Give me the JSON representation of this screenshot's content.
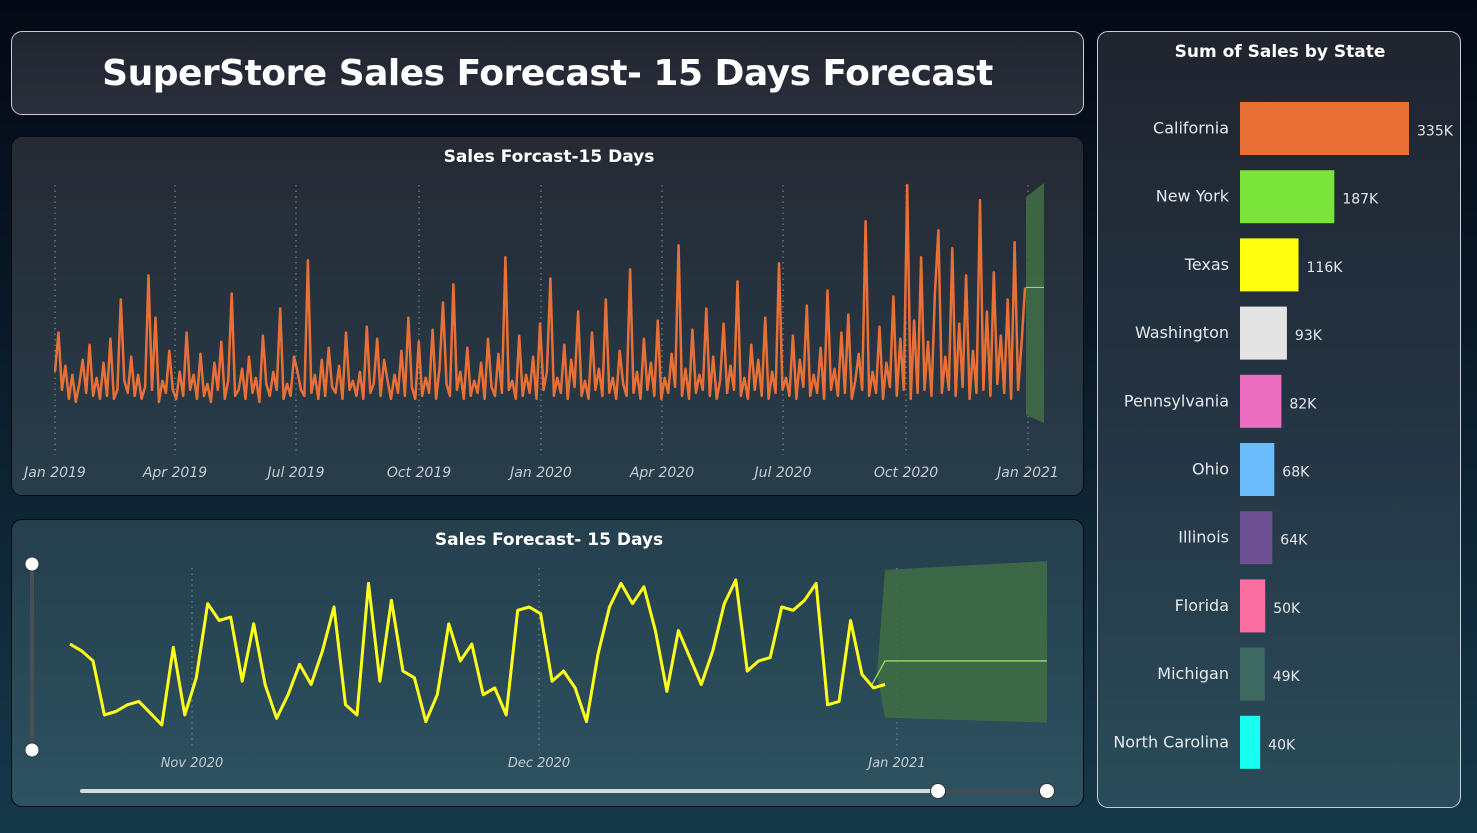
{
  "header": {
    "title": "SuperStore Sales Forecast- 15 Days Forecast"
  },
  "colors": {
    "history_line": "#e87036",
    "detail_line": "#ffff1a",
    "forecast_band": "#3f6b45",
    "forecast_line": "#8fe060"
  },
  "chart_data": [
    {
      "type": "line",
      "title": "Sales Forcast-15 Days",
      "x_ticks": [
        "Jan 2019",
        "Apr 2019",
        "Jul 2019",
        "Oct 2019",
        "Jan 2020",
        "Apr 2020",
        "Jul 2020",
        "Oct 2020",
        "Jan 2021"
      ],
      "x_range": [
        "2019-01-01",
        "2021-01-15"
      ],
      "grid": "vertical dotted",
      "series": [
        {
          "values": [
            1500,
            2800,
            900,
            1700,
            600,
            1400,
            500,
            1100,
            1900,
            800,
            2400,
            700,
            1300,
            600,
            1800,
            700,
            2600,
            600,
            900,
            3900,
            1200,
            800,
            2000,
            700,
            1400,
            600,
            1000,
            4700,
            900,
            3300,
            500,
            1200,
            800,
            2200,
            900,
            600,
            1500,
            700,
            2800,
            900,
            1400,
            600,
            2100,
            700,
            1100,
            500,
            1800,
            900,
            2500,
            600,
            1200,
            4100,
            700,
            900,
            1600,
            600,
            2000,
            800,
            1300,
            500,
            2700,
            1100,
            700,
            1500,
            900,
            3600,
            600,
            1100,
            700,
            2000,
            1500,
            900,
            700,
            5200,
            800,
            1400,
            600,
            1900,
            700,
            2300,
            1000,
            800,
            1700,
            600,
            2800,
            900,
            1200,
            700,
            1500,
            600,
            3000,
            800,
            1100,
            2600,
            700,
            1900,
            1200,
            600,
            1400,
            800,
            2200,
            700,
            3300,
            1000,
            600,
            2500,
            700,
            1300,
            800,
            2900,
            600,
            1600,
            3800,
            1100,
            700,
            4400,
            900,
            1500,
            600,
            2300,
            700,
            1200,
            800,
            1800,
            600,
            2600,
            1000,
            700,
            2100,
            800,
            5300,
            900,
            1200,
            600,
            2700,
            700,
            1400,
            800,
            2000,
            600,
            3100,
            900,
            1500,
            4600,
            700,
            1300,
            800,
            2400,
            600,
            1900,
            1000,
            3500,
            700,
            1200,
            600,
            2800,
            900,
            1600,
            700,
            3900,
            800,
            1300,
            600,
            2200,
            1100,
            700,
            4900,
            800,
            1500,
            600,
            2600,
            900,
            1800,
            700,
            3200,
            600,
            1300,
            800,
            2100,
            1000,
            5700,
            700,
            1600,
            600,
            2900,
            800,
            1400,
            900,
            3600,
            700,
            2000,
            600,
            1200,
            3100,
            800,
            1700,
            900,
            4500,
            700,
            1300,
            600,
            2400,
            900,
            1900,
            700,
            3300,
            600,
            1500,
            800,
            5100,
            900,
            1300,
            700,
            2700,
            600,
            1900,
            1000,
            3700,
            700,
            1400,
            800,
            2300,
            600,
            4200,
            900,
            1600,
            700,
            2800,
            800,
            3400,
            600,
            1200,
            2100,
            900,
            6500,
            700,
            1500,
            800,
            3000,
            600,
            1800,
            1000,
            4000,
            700,
            2600,
            900,
            7700,
            600,
            3200,
            800,
            5300,
            900,
            2500,
            700,
            4100,
            6200,
            800,
            2000,
            900,
            5600,
            700,
            3100,
            1000,
            4700,
            600,
            2200,
            800,
            7200,
            900,
            3500,
            700,
            4800,
            1100,
            2700,
            800,
            3900,
            600,
            5800,
            900,
            2400,
            4300
          ],
          "forecast_band": [
            3200,
            7500
          ],
          "forecast_value": 4300
        }
      ]
    },
    {
      "type": "line",
      "title": "Sales Forecast- 15 Days",
      "x_ticks": [
        "Nov 2020",
        "Dec 2020",
        "Jan 2021"
      ],
      "x_range": [
        "2020-10-20",
        "2021-01-15"
      ],
      "grid": "vertical dotted",
      "series": [
        {
          "values": [
            3100,
            2900,
            2600,
            1000,
            1100,
            1300,
            1400,
            1050,
            700,
            3000,
            1000,
            2100,
            4300,
            3800,
            3900,
            2000,
            3700,
            1900,
            900,
            1600,
            2500,
            1900,
            2900,
            4200,
            1300,
            1000,
            4900,
            2000,
            4400,
            2300,
            2100,
            800,
            1600,
            3700,
            2600,
            3100,
            1600,
            1800,
            1000,
            4100,
            4200,
            4000,
            2000,
            2300,
            1800,
            800,
            2800,
            4200,
            4900,
            4300,
            4800,
            3500,
            1700,
            3500,
            2700,
            1900,
            2900,
            4300,
            5000,
            2300,
            2600,
            2700,
            4200,
            4100,
            4400,
            4900,
            1300,
            1400,
            3800,
            2200,
            1800,
            1900
          ],
          "forecast_band": [
            800,
            5100
          ],
          "forecast_value": 2600
        }
      ],
      "slider": {
        "start": 0.86,
        "end": 1.0
      }
    },
    {
      "type": "bar",
      "orientation": "horizontal",
      "title": "Sum of Sales by State",
      "categories": [
        "California",
        "New York",
        "Texas",
        "Washington",
        "Pennsylvania",
        "Ohio",
        "Illinois",
        "Florida",
        "Michigan",
        "North Carolina"
      ],
      "values": [
        335,
        187,
        116,
        93,
        82,
        68,
        64,
        50,
        49,
        40
      ],
      "value_labels": [
        "335K",
        "187K",
        "116K",
        "93K",
        "82K",
        "68K",
        "64K",
        "50K",
        "49K",
        "40K"
      ],
      "bar_colors": [
        "#e86f36",
        "#7be43a",
        "#ffff12",
        "#e4e4e4",
        "#ec6ec0",
        "#6cbdfd",
        "#6d5193",
        "#fa6fa0",
        "#3f6b63",
        "#18fff1"
      ]
    }
  ]
}
